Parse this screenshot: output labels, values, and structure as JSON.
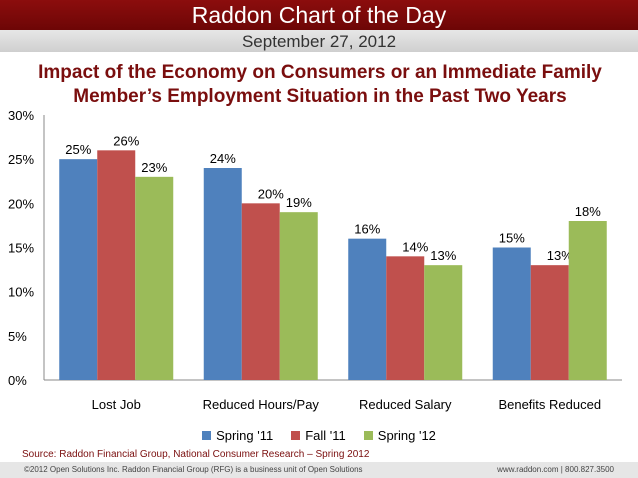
{
  "header": {
    "banner_title": "Raddon Chart of the Day",
    "date": "September 27, 2012"
  },
  "chart_data": {
    "type": "bar",
    "title": "Impact of the Economy on Consumers or an Immediate Family Member’s Employment Situation in the Past Two Years",
    "title_lines": [
      "Impact of the Economy on Consumers or an Immediate Family",
      "Member’s Employment Situation in the Past Two Years"
    ],
    "categories": [
      "Lost Job",
      "Reduced Hours/Pay",
      "Reduced Salary",
      "Benefits Reduced"
    ],
    "series": [
      {
        "name": "Spring '11",
        "color": "#4f81bd",
        "values": [
          25,
          24,
          16,
          15
        ]
      },
      {
        "name": "Fall '11",
        "color": "#c0504d",
        "values": [
          26,
          20,
          14,
          13
        ]
      },
      {
        "name": "Spring '12",
        "color": "#9bbb59",
        "values": [
          23,
          19,
          13,
          18
        ]
      }
    ],
    "data_labels": [
      [
        "25%",
        "24%",
        "16%",
        "15%"
      ],
      [
        "26%",
        "20%",
        "14%",
        "13%"
      ],
      [
        "23%",
        "19%",
        "13%",
        "18%"
      ]
    ],
    "ylim": [
      0,
      30
    ],
    "yticks": [
      0,
      5,
      10,
      15,
      20,
      25,
      30
    ],
    "ytick_labels": [
      "0%",
      "5%",
      "10%",
      "15%",
      "20%",
      "25%",
      "30%"
    ],
    "xlabel": "",
    "ylabel": "",
    "grid": false,
    "legend_position": "bottom"
  },
  "source": "Source: Raddon Financial Group, National Consumer Research – Spring 2012",
  "footer": {
    "copyright": "©2012 Open Solutions Inc.  Raddon Financial Group (RFG) is a business unit of Open Solutions",
    "contact": "www.raddon.com  |  800.827.3500"
  }
}
